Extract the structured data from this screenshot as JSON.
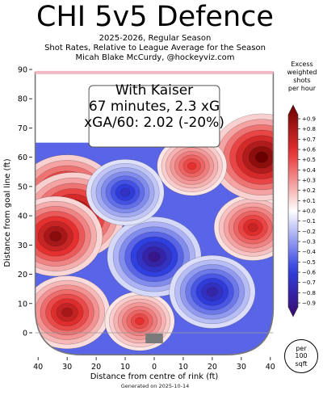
{
  "header": {
    "title": "CHI 5v5 Defence",
    "subtitle_lines": [
      "2025-2026, Regular Season",
      "Shot Rates, Relative to League Average for the Season",
      "Micah Blake McCurdy, @hockeyviz.com"
    ]
  },
  "annotation": {
    "line1": "With Kaiser",
    "line2": "67 minutes, 2.3 xG",
    "line3": "xGA/60: 2.02 (-20%)"
  },
  "legend": {
    "title_lines": [
      "Excess",
      "weighted",
      "shots",
      "per hour"
    ],
    "per_unit": [
      "per",
      "100",
      "sqft"
    ]
  },
  "footer": {
    "generated": "Generated on 2025-10-14"
  },
  "colors": {
    "excess_max": "#6b0000",
    "excess_mid": "#e63030",
    "neutral": "#ffffff",
    "deficit_mid": "#2f3fe0",
    "deficit_max": "#3a0a6e",
    "goal_line": "#f4b8c4",
    "net": "#7a7a7a"
  },
  "chart_data": {
    "type": "heatmap",
    "title": "CHI 5v5 Defence",
    "xlabel": "Distance from centre of rink (ft)",
    "ylabel": "Distance from goal line (ft)",
    "xlim": [
      -42,
      42
    ],
    "ylim": [
      -8,
      90
    ],
    "x_tick_labels": [
      "40",
      "30",
      "20",
      "10",
      "0",
      "10",
      "20",
      "30",
      "40"
    ],
    "x_tick_values": [
      -40,
      -30,
      -20,
      -10,
      0,
      10,
      20,
      30,
      40
    ],
    "y_ticks": [
      0,
      10,
      20,
      30,
      40,
      50,
      60,
      70,
      80,
      90
    ],
    "legend_ticks": [
      "+0.9",
      "+0.8",
      "+0.7",
      "+0.6",
      "+0.5",
      "+0.4",
      "+0.3",
      "+0.2",
      "+0.1",
      "+0.0",
      "−0.1",
      "−0.2",
      "−0.3",
      "−0.4",
      "−0.5",
      "−0.6",
      "−0.7",
      "−0.8",
      "−0.9"
    ],
    "colorbar_range": [
      -0.9,
      0.9
    ],
    "background_value": -0.4,
    "blobs": [
      {
        "x": -30,
        "y": 46,
        "value": 0.9
      },
      {
        "x": -28,
        "y": 40,
        "value": 0.9
      },
      {
        "x": -34,
        "y": 33,
        "value": 0.8
      },
      {
        "x": 34,
        "y": 36,
        "value": 0.6
      },
      {
        "x": 37,
        "y": 60,
        "value": 0.9
      },
      {
        "x": 13,
        "y": 57,
        "value": 0.5
      },
      {
        "x": -30,
        "y": 7,
        "value": 0.7
      },
      {
        "x": -5,
        "y": 4,
        "value": 0.5
      },
      {
        "x": 0,
        "y": 26,
        "value": -0.8
      },
      {
        "x": -10,
        "y": 48,
        "value": -0.6
      },
      {
        "x": 20,
        "y": 14,
        "value": -0.7
      }
    ]
  }
}
